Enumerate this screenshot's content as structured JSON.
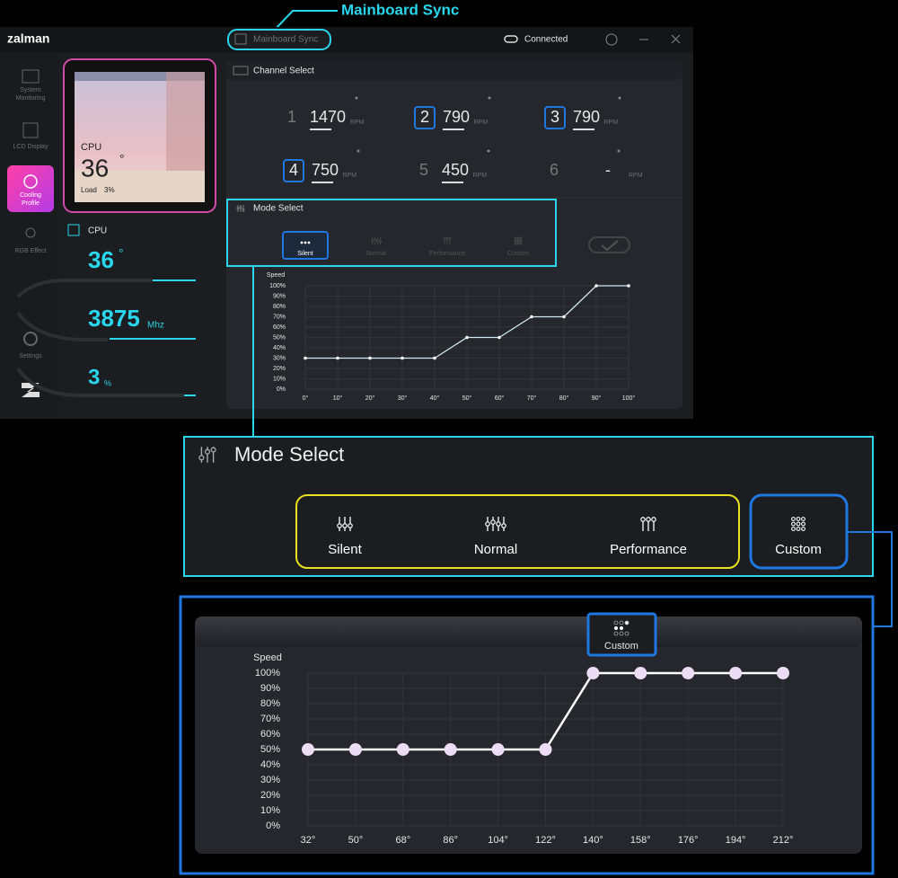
{
  "callout": {
    "title": "Mainboard Sync"
  },
  "titlebar": {
    "logo": "zalman",
    "sync_button": "Mainboard Sync",
    "status": "Connected"
  },
  "sidebar": {
    "items": [
      [
        "System",
        "Monitoring"
      ],
      [
        "LCD Display"
      ],
      [
        "Cooling",
        "Profile"
      ],
      [
        "RGB Effect"
      ],
      [
        "Settings"
      ]
    ]
  },
  "lcd": {
    "label": "CPU",
    "temp": "36",
    "temp_unit": "°",
    "load_label": "Load",
    "load": "3%"
  },
  "cpu_panel": {
    "title": "CPU",
    "temp": "36",
    "temp_unit": "°",
    "clock": "3875",
    "clock_unit": "Mhz",
    "load": "3",
    "load_unit": "%"
  },
  "channel_select": {
    "title": "Channel Select",
    "channels": [
      {
        "number": "1",
        "rpm": "1470",
        "unit": "RPM"
      },
      {
        "number": "2",
        "rpm": "790",
        "unit": "RPM"
      },
      {
        "number": "3",
        "rpm": "790",
        "unit": "RPM"
      },
      {
        "number": "4",
        "rpm": "750",
        "unit": "RPM"
      },
      {
        "number": "5",
        "rpm": "450",
        "unit": "RPM"
      },
      {
        "number": "6",
        "rpm": "-",
        "unit": "RPM"
      }
    ]
  },
  "mode_select": {
    "title": "Mode Select",
    "modes": [
      "Silent",
      "Normal",
      "Performance",
      "Custom"
    ]
  },
  "mode_select_zoom": {
    "title": "Mode Select",
    "modes": [
      "Silent",
      "Normal",
      "Performance",
      "Custom"
    ]
  },
  "custom_button": "Custom",
  "chart_data": [
    {
      "type": "line",
      "ylabel": "Speed",
      "x": [
        0,
        10,
        20,
        30,
        40,
        50,
        60,
        70,
        80,
        90,
        100
      ],
      "series": [
        {
          "color": "#cfe6f5",
          "values": [
            30,
            30,
            30,
            30,
            30,
            50,
            50,
            70,
            70,
            100,
            100
          ]
        }
      ],
      "xlim": [
        0,
        100
      ],
      "ylim": [
        0,
        100
      ],
      "xticks": [
        {
          "value": 0,
          "label": "0°"
        },
        {
          "value": 10,
          "label": "10°"
        },
        {
          "value": 20,
          "label": "20°"
        },
        {
          "value": 30,
          "label": "30°"
        },
        {
          "value": 40,
          "label": "40°"
        },
        {
          "value": 50,
          "label": "50°"
        },
        {
          "value": 60,
          "label": "60°"
        },
        {
          "value": 70,
          "label": "70°"
        },
        {
          "value": 80,
          "label": "80°"
        },
        {
          "value": 90,
          "label": "90°"
        },
        {
          "value": 100,
          "label": "100°"
        }
      ],
      "yticks": [
        {
          "value": 0,
          "label": "0%"
        },
        {
          "value": 10,
          "label": "10%"
        },
        {
          "value": 20,
          "label": "20%"
        },
        {
          "value": 30,
          "label": "30%"
        },
        {
          "value": 40,
          "label": "40%"
        },
        {
          "value": 50,
          "label": "50%"
        },
        {
          "value": 60,
          "label": "60%"
        },
        {
          "value": 70,
          "label": "70%"
        },
        {
          "value": 80,
          "label": "80%"
        },
        {
          "value": 90,
          "label": "90%"
        },
        {
          "value": 100,
          "label": "100%"
        }
      ],
      "grid": true
    },
    {
      "type": "line",
      "ylabel": "Speed",
      "x": [
        32,
        50,
        68,
        86,
        104,
        122,
        140,
        158,
        176,
        194,
        212
      ],
      "series": [
        {
          "color": "#ffffff",
          "values": [
            50,
            50,
            50,
            50,
            50,
            50,
            100,
            100,
            100,
            100,
            100
          ]
        }
      ],
      "xlim": [
        32,
        212
      ],
      "ylim": [
        0,
        100
      ],
      "xticks": [
        {
          "value": 32,
          "label": "32°"
        },
        {
          "value": 50,
          "label": "50°"
        },
        {
          "value": 68,
          "label": "68°"
        },
        {
          "value": 86,
          "label": "86°"
        },
        {
          "value": 104,
          "label": "104°"
        },
        {
          "value": 122,
          "label": "122°"
        },
        {
          "value": 140,
          "label": "140°"
        },
        {
          "value": 158,
          "label": "158°"
        },
        {
          "value": 176,
          "label": "176°"
        },
        {
          "value": 194,
          "label": "194°"
        },
        {
          "value": 212,
          "label": "212°"
        }
      ],
      "yticks": [
        {
          "value": 0,
          "label": "0%"
        },
        {
          "value": 10,
          "label": "10%"
        },
        {
          "value": 20,
          "label": "20%"
        },
        {
          "value": 30,
          "label": "30%"
        },
        {
          "value": 40,
          "label": "40%"
        },
        {
          "value": 50,
          "label": "50%"
        },
        {
          "value": 60,
          "label": "60%"
        },
        {
          "value": 70,
          "label": "70%"
        },
        {
          "value": 80,
          "label": "80%"
        },
        {
          "value": 90,
          "label": "90%"
        },
        {
          "value": 100,
          "label": "100%"
        }
      ],
      "grid": true
    }
  ]
}
